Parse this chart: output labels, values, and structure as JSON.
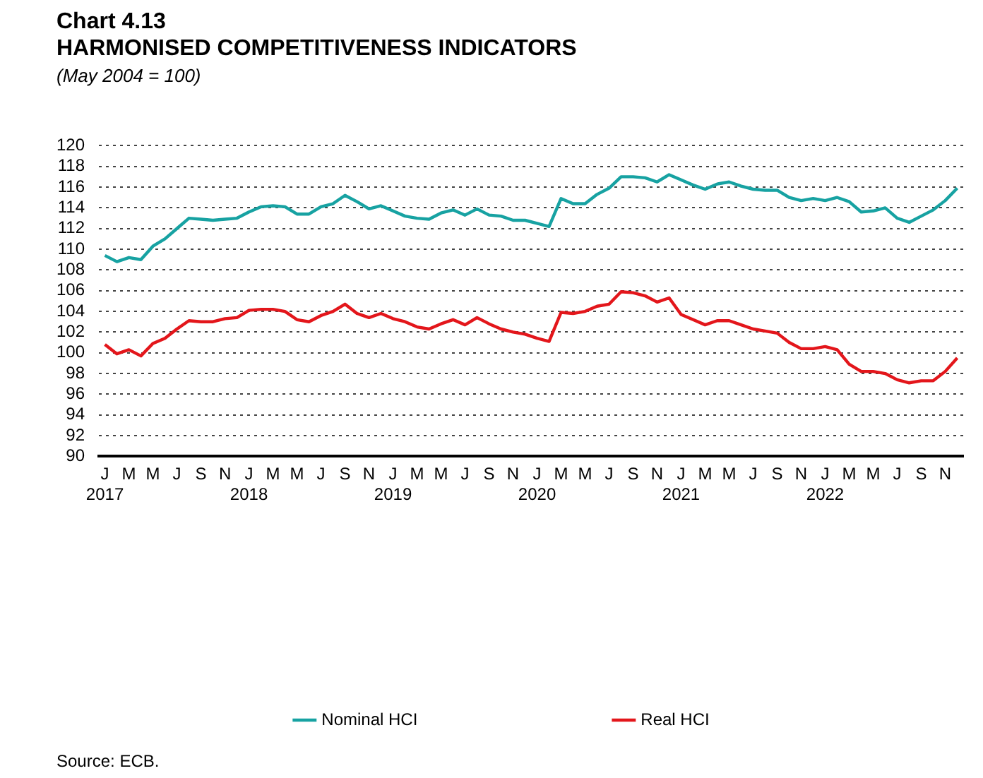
{
  "chart_data": {
    "type": "line",
    "title": "Chart 4.13\nHARMONISED COMPETITIVENESS INDICATORS",
    "subtitle": "(May 2004 = 100)",
    "categories": [
      "J\n2017",
      null,
      "M",
      null,
      "M",
      null,
      "J",
      null,
      "S",
      null,
      "N",
      null,
      "J\n2018",
      null,
      "M",
      null,
      "M",
      null,
      "J",
      null,
      "S",
      null,
      "N",
      null,
      "J\n2019",
      null,
      "M",
      null,
      "M",
      null,
      "J",
      null,
      "S",
      null,
      "N",
      null,
      "J\n2020",
      null,
      "M",
      null,
      "M",
      null,
      "J",
      null,
      "S",
      null,
      "N",
      null,
      "J\n2021",
      null,
      "M",
      null,
      "M",
      null,
      "J",
      null,
      "S",
      null,
      "N",
      null,
      "J\n2022",
      null,
      "M",
      null,
      "M",
      null,
      "J",
      null,
      "S",
      null,
      "N",
      null
    ],
    "series": [
      {
        "name": "Nominal HCI",
        "color": "#17a2a2",
        "values": [
          109.4,
          108.8,
          109.2,
          109.0,
          110.3,
          111.0,
          112.0,
          113.0,
          112.9,
          112.8,
          112.9,
          113.0,
          113.6,
          114.1,
          114.2,
          114.1,
          113.4,
          113.4,
          114.1,
          114.4,
          115.2,
          114.6,
          113.9,
          114.2,
          113.7,
          113.2,
          113.0,
          112.9,
          113.5,
          113.8,
          113.3,
          113.9,
          113.3,
          113.2,
          112.8,
          112.8,
          112.5,
          112.2,
          114.9,
          114.4,
          114.4,
          115.3,
          115.9,
          117.0,
          117.0,
          116.9,
          116.5,
          117.2,
          116.7,
          116.2,
          115.8,
          116.3,
          116.5,
          116.1,
          115.8,
          115.7,
          115.7,
          115.0,
          114.7,
          114.9,
          114.7,
          115.0,
          114.6,
          113.6,
          113.7,
          114.0,
          113.0,
          112.6,
          113.2,
          113.8,
          114.7,
          115.9
        ]
      },
      {
        "name": "Real HCI",
        "color": "#e3161b",
        "values": [
          100.8,
          99.9,
          100.3,
          99.7,
          100.9,
          101.4,
          102.3,
          103.1,
          103.0,
          103.0,
          103.3,
          103.4,
          104.1,
          104.2,
          104.2,
          104.0,
          103.2,
          103.0,
          103.6,
          104.0,
          104.7,
          103.8,
          103.4,
          103.8,
          103.3,
          103.0,
          102.5,
          102.3,
          102.8,
          103.2,
          102.7,
          103.4,
          102.8,
          102.3,
          102.0,
          101.8,
          101.4,
          101.1,
          103.9,
          103.8,
          104.0,
          104.5,
          104.7,
          105.9,
          105.8,
          105.5,
          104.9,
          105.3,
          103.7,
          103.2,
          102.7,
          103.1,
          103.1,
          102.7,
          102.3,
          102.1,
          101.9,
          101.0,
          100.4,
          100.4,
          100.6,
          100.3,
          98.9,
          98.2,
          98.2,
          98.0,
          97.4,
          97.1,
          97.3,
          97.3,
          98.2,
          99.5
        ]
      }
    ],
    "ylim": [
      90,
      120
    ],
    "yticks": [
      90,
      92,
      94,
      96,
      98,
      100,
      102,
      104,
      106,
      108,
      110,
      112,
      114,
      116,
      118,
      120
    ],
    "grid": "y",
    "legend": "bottom",
    "marker": "none",
    "line_style": "solid",
    "annotations": [
      "Source: ECB."
    ]
  }
}
